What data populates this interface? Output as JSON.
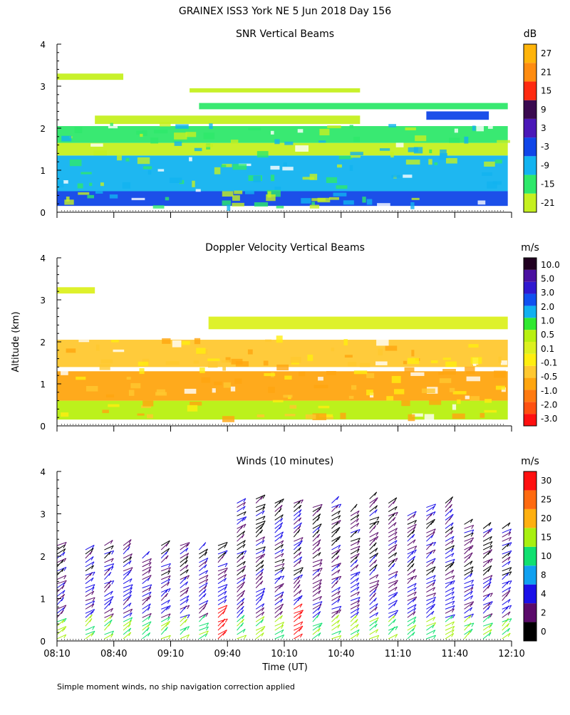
{
  "title": "GRAINEX ISS3 York NE   5 Jun 2018 Day 156",
  "footnote": "Simple moment winds, no ship navigation correction applied",
  "xaxis": {
    "label": "Time (UT)",
    "ticks": [
      "08:10",
      "08:40",
      "09:10",
      "09:40",
      "10:10",
      "10:40",
      "11:10",
      "11:40",
      "12:10"
    ],
    "range_minutes": [
      0,
      240
    ]
  },
  "yaxis": {
    "label": "Altitude (km)",
    "ticks": [
      "0",
      "1",
      "2",
      "3",
      "4"
    ],
    "range": [
      0,
      4
    ]
  },
  "colors": {
    "snr": [
      "#c5f020",
      "#2ee86a",
      "#12b3f0",
      "#1046e8",
      "#4a18b8",
      "#3a0a50",
      "#ff2a10",
      "#ff8c10",
      "#ffb40a"
    ],
    "doppler": [
      "#ff1010",
      "#ff5010",
      "#ff7a10",
      "#ffa510",
      "#ffc830",
      "#ffee10",
      "#dcf020",
      "#b8f010",
      "#30e830",
      "#10b0f0",
      "#1050f0",
      "#3018d0",
      "#4a10a0",
      "#200020"
    ],
    "winds": [
      "#000000",
      "#5a0a6a",
      "#1a10e8",
      "#10a0f0",
      "#10e070",
      "#a8f010",
      "#ffb010",
      "#ff6a10",
      "#ff1010"
    ]
  },
  "chart_data": [
    {
      "type": "heatmap",
      "title": "SNR Vertical Beams",
      "units": "dB",
      "colorbar_ticks": [
        "27",
        "21",
        "15",
        "9",
        "3",
        "-3",
        "-9",
        "-15",
        "-21"
      ],
      "layers": [
        {
          "t0": 0,
          "t1": 238,
          "z0": 0.15,
          "z1": 0.5,
          "color_index": 3
        },
        {
          "t0": 0,
          "t1": 238,
          "z0": 0.5,
          "z1": 1.35,
          "color_index": 2
        },
        {
          "t0": 0,
          "t1": 238,
          "z0": 1.35,
          "z1": 1.65,
          "color_index": 0
        },
        {
          "t0": 0,
          "t1": 238,
          "z0": 1.65,
          "z1": 2.05,
          "color_index": 1
        },
        {
          "t0": 20,
          "t1": 160,
          "z0": 2.1,
          "z1": 2.3,
          "color_index": 0
        },
        {
          "t0": 75,
          "t1": 238,
          "z0": 2.45,
          "z1": 2.6,
          "color_index": 1
        },
        {
          "t0": 195,
          "t1": 228,
          "z0": 2.2,
          "z1": 2.4,
          "color_index": 3
        },
        {
          "t0": 0,
          "t1": 35,
          "z0": 3.15,
          "z1": 3.3,
          "color_index": 0
        },
        {
          "t0": 70,
          "t1": 160,
          "z0": 2.85,
          "z1": 2.95,
          "color_index": 0
        }
      ]
    },
    {
      "type": "heatmap",
      "title": "Doppler Velocity Vertical Beams",
      "units": "m/s",
      "colorbar_ticks": [
        "10.0",
        "5.0",
        "3.0",
        "2.0",
        "1.0",
        "0.5",
        "0.1",
        "-0.1",
        "-0.5",
        "-1.0",
        "-2.0",
        "-3.0"
      ],
      "layers": [
        {
          "t0": 0,
          "t1": 238,
          "z0": 0.15,
          "z1": 0.6,
          "color_index": 7
        },
        {
          "t0": 0,
          "t1": 238,
          "z0": 0.6,
          "z1": 1.3,
          "color_index": 3
        },
        {
          "t0": 0,
          "t1": 238,
          "z0": 1.4,
          "z1": 2.05,
          "color_index": 4
        },
        {
          "t0": 80,
          "t1": 238,
          "z0": 2.3,
          "z1": 2.6,
          "color_index": 6
        },
        {
          "t0": 0,
          "t1": 20,
          "z0": 3.15,
          "z1": 3.3,
          "color_index": 6
        }
      ]
    },
    {
      "type": "scatter",
      "title": "Winds (10 minutes)",
      "units": "m/s",
      "colorbar_ticks": [
        "30",
        "25",
        "20",
        "15",
        "10",
        "8",
        "4",
        "2",
        "0"
      ],
      "times_min": [
        0,
        15,
        25,
        35,
        45,
        55,
        65,
        75,
        85,
        95,
        105,
        115,
        125,
        135,
        145,
        155,
        165,
        175,
        185,
        195,
        205,
        215,
        225,
        235
      ],
      "max_altitude_km": [
        2.3,
        2.2,
        2.3,
        2.3,
        2.0,
        2.3,
        2.3,
        2.2,
        2.3,
        3.3,
        3.4,
        3.3,
        3.3,
        3.2,
        3.3,
        3.1,
        3.4,
        3.3,
        3.0,
        3.2,
        3.3,
        2.8,
        2.7,
        2.7
      ]
    }
  ]
}
